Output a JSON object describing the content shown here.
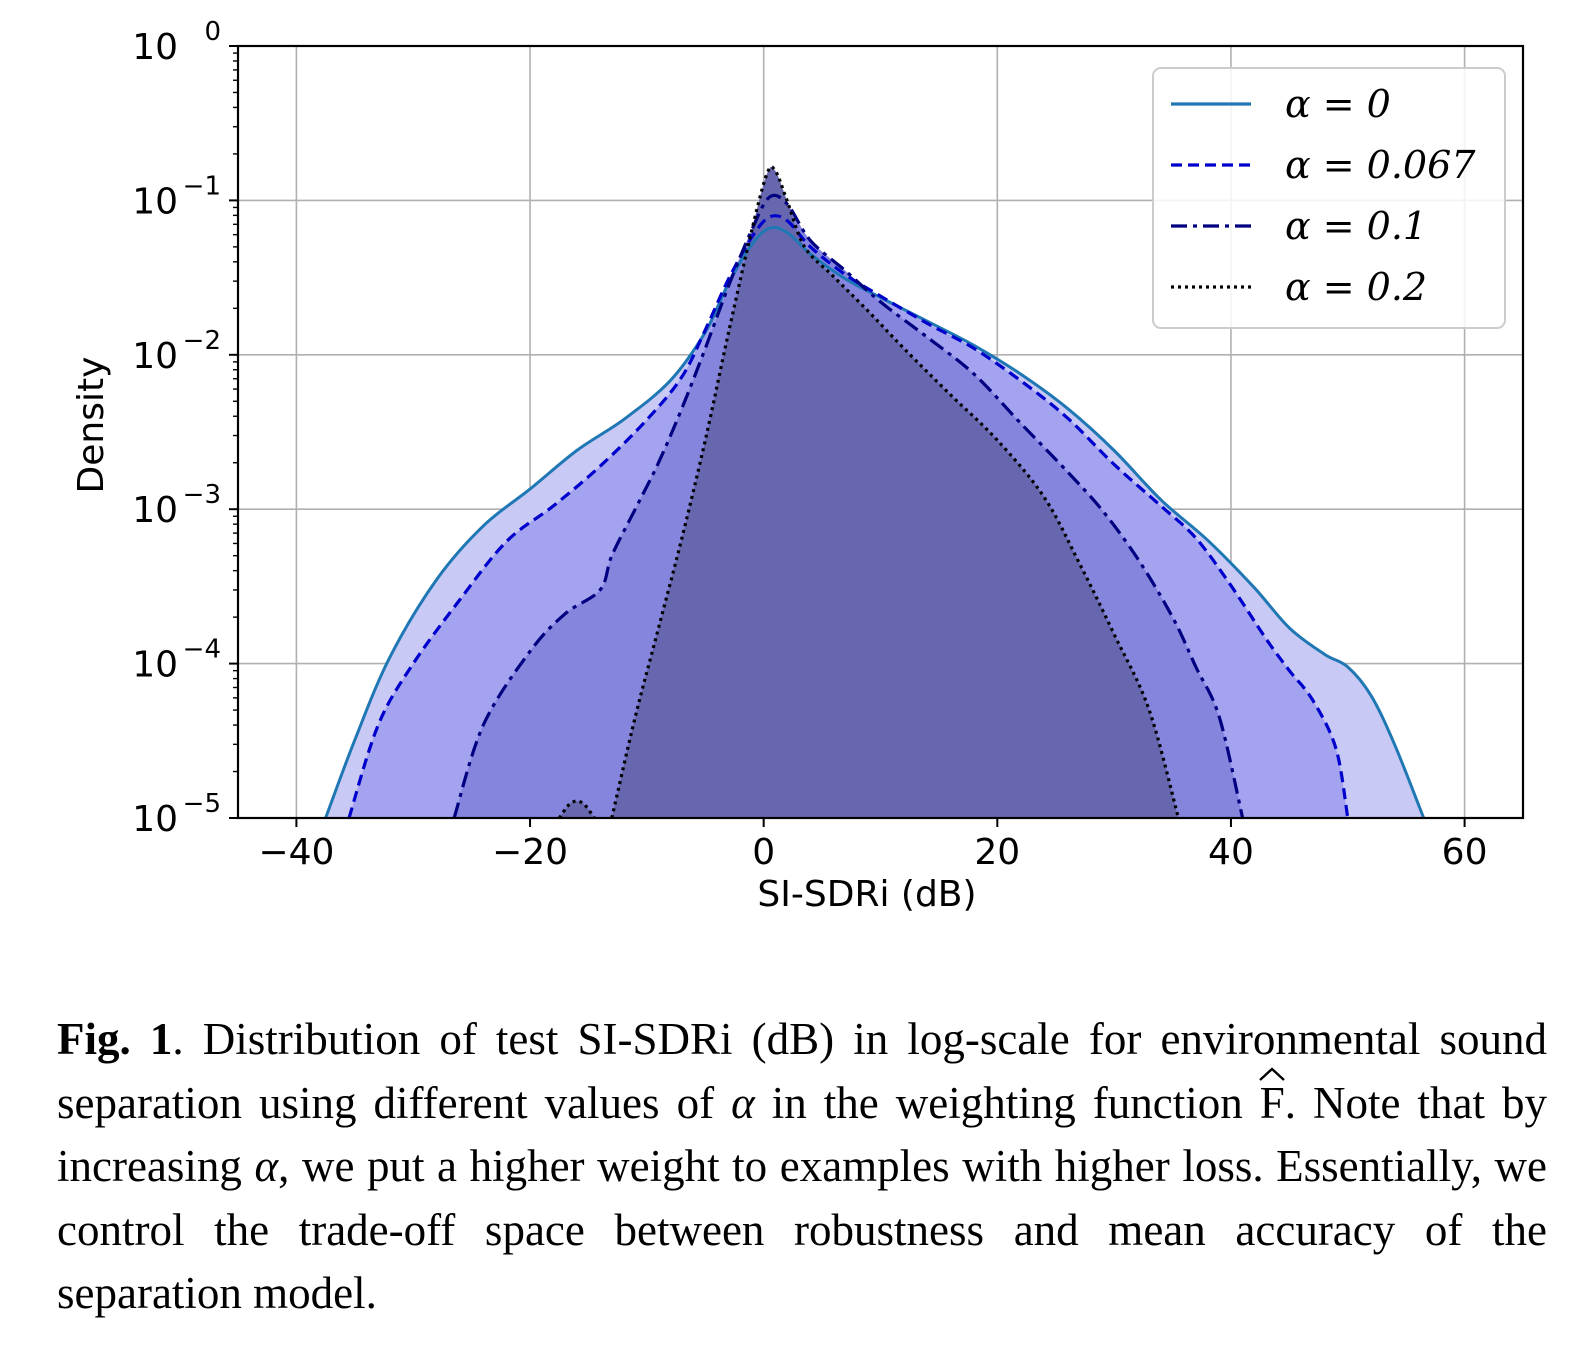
{
  "chart_data": {
    "type": "area",
    "xlabel": "SI-SDRi (dB)",
    "ylabel": "Density",
    "xlim": [
      -45,
      65
    ],
    "ylim": [
      1e-05,
      1
    ],
    "y_scale": "log",
    "x_ticks": [
      -40,
      -20,
      0,
      20,
      40,
      60
    ],
    "x_tick_labels": [
      "−40",
      "−20",
      "0",
      "20",
      "40",
      "60"
    ],
    "y_ticks": [
      1e-05,
      0.0001,
      0.001,
      0.01,
      0.1,
      1
    ],
    "y_tick_bases": [
      "10",
      "10",
      "10",
      "10",
      "10",
      "10"
    ],
    "y_tick_exponents": [
      "−5",
      "−4",
      "−3",
      "−2",
      "−1",
      "0"
    ],
    "grid": true,
    "legend_position": "top-right",
    "series": [
      {
        "name": "α = 0",
        "line_style": "solid",
        "line_color": "#1f77b4",
        "fill_color": "#c9c9f6",
        "points": [
          [
            -37.5,
            1e-05
          ],
          [
            -35,
            3.2e-05
          ],
          [
            -32,
            0.00011
          ],
          [
            -28,
            0.00035
          ],
          [
            -24,
            0.00078
          ],
          [
            -20,
            0.00135
          ],
          [
            -16,
            0.0024
          ],
          [
            -12,
            0.0038
          ],
          [
            -8,
            0.0068
          ],
          [
            -5,
            0.014
          ],
          [
            -3,
            0.029
          ],
          [
            -1,
            0.052
          ],
          [
            0.5,
            0.066
          ],
          [
            2,
            0.062
          ],
          [
            4,
            0.045
          ],
          [
            7,
            0.031
          ],
          [
            10,
            0.0235
          ],
          [
            14,
            0.0165
          ],
          [
            18,
            0.0115
          ],
          [
            22,
            0.0075
          ],
          [
            26,
            0.0045
          ],
          [
            30,
            0.0024
          ],
          [
            34,
            0.00115
          ],
          [
            38,
            0.00063
          ],
          [
            42,
            0.00031
          ],
          [
            45,
            0.00017
          ],
          [
            48,
            0.000115
          ],
          [
            50,
            9.5e-05
          ],
          [
            52,
            6.2e-05
          ],
          [
            54,
            3e-05
          ],
          [
            56.5,
            1e-05
          ]
        ]
      },
      {
        "name": "α = 0.067",
        "line_style": "dashed",
        "line_color": "#0000cc",
        "fill_color": "#a3a3f0",
        "points": [
          [
            -35.5,
            1e-05
          ],
          [
            -33,
            4e-05
          ],
          [
            -30,
            0.0001
          ],
          [
            -26,
            0.00026
          ],
          [
            -22,
            0.00062
          ],
          [
            -18,
            0.00105
          ],
          [
            -14,
            0.0019
          ],
          [
            -10,
            0.0038
          ],
          [
            -7,
            0.0072
          ],
          [
            -5,
            0.0145
          ],
          [
            -3,
            0.031
          ],
          [
            -1,
            0.058
          ],
          [
            0.5,
            0.078
          ],
          [
            2,
            0.074
          ],
          [
            4,
            0.05
          ],
          [
            7,
            0.033
          ],
          [
            10,
            0.024
          ],
          [
            14,
            0.016
          ],
          [
            18,
            0.011
          ],
          [
            22,
            0.0068
          ],
          [
            26,
            0.0039
          ],
          [
            30,
            0.00195
          ],
          [
            34,
            0.00105
          ],
          [
            37,
            0.00065
          ],
          [
            40,
            0.00032
          ],
          [
            43,
            0.000145
          ],
          [
            45,
            9e-05
          ],
          [
            47,
            5.8e-05
          ],
          [
            49,
            2.8e-05
          ],
          [
            50,
            1e-05
          ]
        ]
      },
      {
        "name": "α = 0.1",
        "line_style": "dashdot",
        "line_color": "#000080",
        "fill_color": "#8585dd",
        "points": [
          [
            -26.5,
            1e-05
          ],
          [
            -24,
            4e-05
          ],
          [
            -20,
            0.00012
          ],
          [
            -17,
            0.00021
          ],
          [
            -14,
            0.0003
          ],
          [
            -13,
            0.0005
          ],
          [
            -11,
            0.001
          ],
          [
            -9,
            0.002
          ],
          [
            -7,
            0.0045
          ],
          [
            -5,
            0.011
          ],
          [
            -3,
            0.028
          ],
          [
            -1,
            0.065
          ],
          [
            0.5,
            0.105
          ],
          [
            2,
            0.095
          ],
          [
            4,
            0.055
          ],
          [
            7,
            0.035
          ],
          [
            10,
            0.022
          ],
          [
            14,
            0.013
          ],
          [
            18,
            0.0075
          ],
          [
            22,
            0.0036
          ],
          [
            26,
            0.00175
          ],
          [
            29,
            0.00098
          ],
          [
            32,
            0.00048
          ],
          [
            35,
            0.0002
          ],
          [
            37,
            9.5e-05
          ],
          [
            39,
            4.5e-05
          ],
          [
            41,
            1e-05
          ]
        ]
      },
      {
        "name": "α = 0.2",
        "line_style": "dotted",
        "line_color": "#000000",
        "fill_color": "#6767b0",
        "points": [
          [
            -13,
            1e-05
          ],
          [
            -11,
            4.5e-05
          ],
          [
            -9,
            0.00017
          ],
          [
            -7,
            0.00065
          ],
          [
            -5,
            0.0028
          ],
          [
            -3,
            0.014
          ],
          [
            -1,
            0.065
          ],
          [
            0.3,
            0.15
          ],
          [
            1,
            0.155
          ],
          [
            2,
            0.1
          ],
          [
            3.5,
            0.05
          ],
          [
            6,
            0.032
          ],
          [
            9,
            0.019
          ],
          [
            12,
            0.011
          ],
          [
            16,
            0.0055
          ],
          [
            20,
            0.0028
          ],
          [
            24,
            0.0012
          ],
          [
            27,
            0.00045
          ],
          [
            30,
            0.000155
          ],
          [
            33,
            5e-05
          ],
          [
            35.5,
            1e-05
          ]
        ]
      }
    ],
    "extra_blob": {
      "points": [
        [
          -17.5,
          1e-05
        ],
        [
          -16.5,
          1.25e-05
        ],
        [
          -15.5,
          1.25e-05
        ],
        [
          -14.5,
          1e-05
        ]
      ]
    }
  },
  "caption": {
    "label": "Fig. 1",
    "text_a": ". Distribution of test SI-SDRi (dB) in log-scale for environmental sound separation using different values of ",
    "alpha_1": "α",
    "text_b": " in the weighting function ",
    "func": "F",
    "text_c": ". Note that by increasing ",
    "alpha_2": "α",
    "text_d": ", we put a higher weight to examples with higher loss. Essentially, we control the trade-off space between robustness and mean accuracy of the separation model."
  }
}
